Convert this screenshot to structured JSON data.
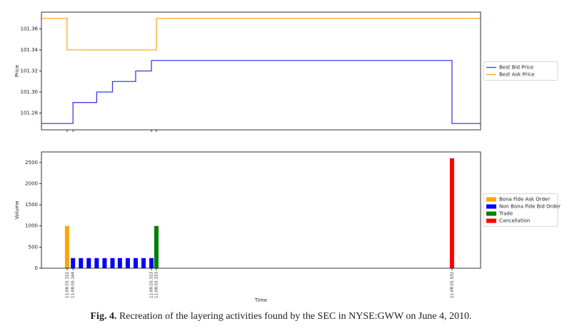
{
  "chart_data": [
    {
      "type": "line",
      "drawstyle": "steps-post",
      "y_label": "Price",
      "xlim": [
        55.1,
        55.99
      ],
      "xticks": [
        55.152,
        55.164,
        55.323,
        55.333
      ],
      "ylim": [
        101.264,
        101.376
      ],
      "yticks": [
        101.28,
        {
          "value": 101.3,
          "label": "101.30"
        },
        101.32,
        101.34,
        101.36
      ],
      "legend": "outside right",
      "series": [
        {
          "name": "Best Bid Price",
          "color": "#3b3bf0",
          "x": [
            55.1,
            55.164,
            55.212,
            55.244,
            55.291,
            55.323,
            55.932,
            55.99
          ],
          "values": [
            101.27,
            101.29,
            101.3,
            101.31,
            101.32,
            101.33,
            101.27,
            101.27
          ]
        },
        {
          "name": "Best Ask Price",
          "color": "#ffa620",
          "x": [
            55.1,
            55.152,
            55.333,
            55.99
          ],
          "values": [
            101.37,
            101.34,
            101.37,
            101.37
          ]
        }
      ]
    },
    {
      "type": "bar",
      "x_label": "Time",
      "y_label": "Volume",
      "xlim": [
        55.1,
        55.99
      ],
      "xticks": [
        {
          "value": 55.152,
          "label": "11:08:55.152"
        },
        {
          "value": 55.164,
          "label": "11:08:55.164"
        },
        {
          "value": 55.323,
          "label": "11:08:55.323"
        },
        {
          "value": 55.333,
          "label": "11:08:55.333"
        },
        {
          "value": 55.932,
          "label": "11:08:55.932"
        }
      ],
      "ylim": [
        0,
        2750
      ],
      "yticks": [
        0,
        500,
        1000,
        1500,
        2000,
        2500
      ],
      "legend": "outside right",
      "series": [
        {
          "name": "Bona Fide Ask Order",
          "color": "#ffa500",
          "x": [
            55.152
          ],
          "values": [
            1000
          ]
        },
        {
          "name": "Non Bona Fide Bid Order",
          "color": "#0000ff",
          "x": [
            55.164,
            55.18,
            55.196,
            55.212,
            55.228,
            55.244,
            55.259,
            55.275,
            55.291,
            55.307,
            55.323
          ],
          "values": [
            240,
            240,
            240,
            240,
            240,
            240,
            240,
            240,
            240,
            240,
            240
          ]
        },
        {
          "name": "Trade",
          "color": "#008000",
          "x": [
            55.333
          ],
          "values": [
            1000
          ]
        },
        {
          "name": "Cancellation",
          "color": "#ff0000",
          "x": [
            55.932
          ],
          "values": [
            2600
          ]
        }
      ]
    }
  ],
  "caption": {
    "label": "Fig. 4.",
    "text": "Recreation of the layering activities found by the SEC in NYSE:GWW on June 4, 2010."
  }
}
